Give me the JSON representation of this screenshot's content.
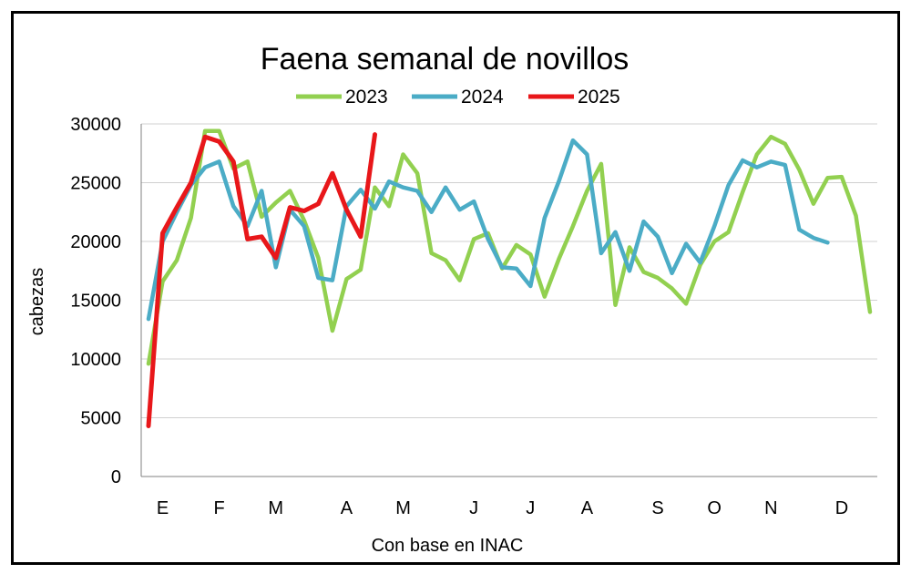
{
  "chart_data": {
    "type": "line",
    "title": "Faena semanal de novillos",
    "xlabel": "Con base en INAC",
    "ylabel": "cabezas",
    "ylim": [
      0,
      30000
    ],
    "yticks": [
      0,
      5000,
      10000,
      15000,
      20000,
      25000,
      30000
    ],
    "ytick_labels": [
      "0",
      "5000",
      "10000",
      "15000",
      "20000",
      "25000",
      "30000"
    ],
    "x_range": [
      1,
      52
    ],
    "month_labels": [
      {
        "label": "E",
        "week": 2
      },
      {
        "label": "F",
        "week": 6
      },
      {
        "label": "M",
        "week": 10
      },
      {
        "label": "A",
        "week": 15
      },
      {
        "label": "M",
        "week": 19
      },
      {
        "label": "J",
        "week": 24
      },
      {
        "label": "J",
        "week": 28
      },
      {
        "label": "A",
        "week": 32
      },
      {
        "label": "S",
        "week": 37
      },
      {
        "label": "O",
        "week": 41
      },
      {
        "label": "N",
        "week": 45
      },
      {
        "label": "D",
        "week": 50
      }
    ],
    "grid": true,
    "legend_position": "top",
    "series": [
      {
        "name": "2023",
        "color": "#92D050",
        "values": [
          9600,
          16600,
          18400,
          22000,
          29400,
          29400,
          26200,
          26800,
          22100,
          23300,
          24300,
          21800,
          18600,
          12400,
          16800,
          17600,
          24600,
          23000,
          27400,
          25800,
          19000,
          18400,
          16700,
          20200,
          20700,
          17700,
          19700,
          18900,
          15300,
          18500,
          21300,
          24300,
          26600,
          14600,
          19500,
          17400,
          16900,
          16000,
          14700,
          18000,
          20000,
          20800,
          24200,
          27400,
          28900,
          28300,
          26100,
          23200,
          25400,
          25500,
          22200,
          14000
        ]
      },
      {
        "name": "2024",
        "color": "#4BACC6",
        "values": [
          13400,
          20000,
          22500,
          24800,
          26300,
          26800,
          23000,
          21300,
          24300,
          17800,
          22700,
          21300,
          16900,
          16700,
          23000,
          24400,
          22800,
          25100,
          24600,
          24300,
          22500,
          24600,
          22700,
          23400,
          20200,
          17800,
          17700,
          16200,
          22000,
          25100,
          28600,
          27400,
          19000,
          20800,
          17500,
          21700,
          20400,
          17300,
          19800,
          18200,
          21300,
          24800,
          26900,
          26300,
          26800,
          26500,
          21000,
          20300,
          19900
        ]
      },
      {
        "name": "2025",
        "color": "#E8171A",
        "values": [
          4300,
          20700,
          22900,
          25000,
          28900,
          28500,
          26800,
          20200,
          20400,
          18600,
          22900,
          22600,
          23200,
          25800,
          22700,
          20400,
          29100
        ]
      }
    ]
  }
}
